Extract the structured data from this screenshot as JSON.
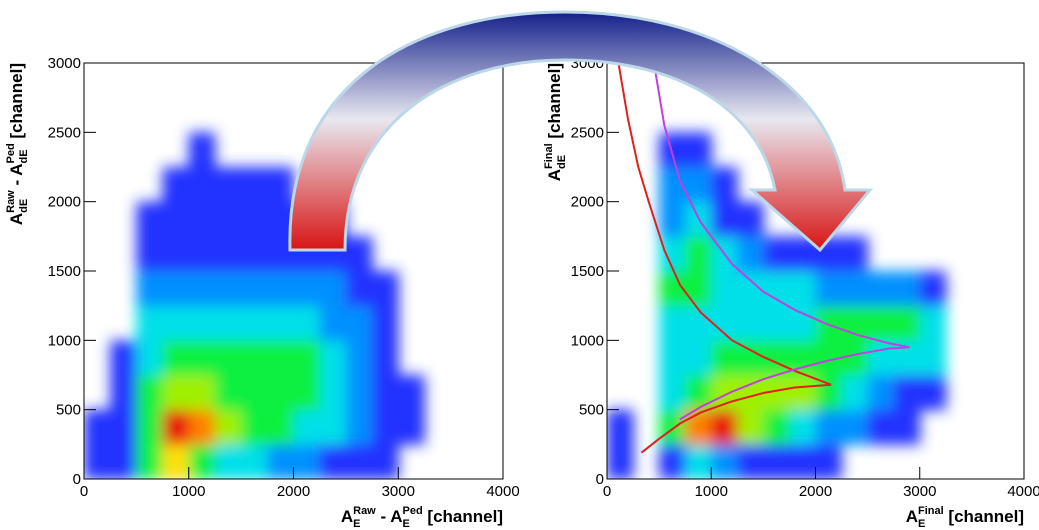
{
  "chart_data": [
    {
      "type": "hist2d",
      "xlabel": [
        {
          "text": "A",
          "pos": "base"
        },
        {
          "text": "E",
          "pos": "sub"
        },
        {
          "text": "Raw",
          "pos": "sup"
        },
        {
          "text": " - A",
          "pos": "base"
        },
        {
          "text": "E",
          "pos": "sub"
        },
        {
          "text": "Ped",
          "pos": "sup"
        },
        {
          "text": " [channel]",
          "pos": "base"
        }
      ],
      "ylabel": [
        {
          "text": "A",
          "pos": "base"
        },
        {
          "text": "dE",
          "pos": "sub"
        },
        {
          "text": "Raw",
          "pos": "sup"
        },
        {
          "text": " - A",
          "pos": "base"
        },
        {
          "text": "dE",
          "pos": "sub"
        },
        {
          "text": "Ped",
          "pos": "sup"
        },
        {
          "text": " [channel]",
          "pos": "base"
        }
      ],
      "xlim": [
        0,
        4000
      ],
      "ylim": [
        0,
        3000
      ],
      "xticks": [
        0,
        1000,
        2000,
        3000,
        4000
      ],
      "yticks": [
        0,
        500,
        1000,
        1500,
        2000,
        2500,
        3000
      ],
      "colormap": [
        "#6a00c8",
        "#2030ff",
        "#0090ff",
        "#00e0e8",
        "#10f040",
        "#a0f000",
        "#ffe000",
        "#ff8000",
        "#e81010"
      ],
      "xbins": [
        0,
        250,
        500,
        750,
        1000,
        1250,
        1500,
        1750,
        2000,
        2250,
        2500,
        2750,
        3000,
        3250,
        3500,
        3750,
        4000
      ],
      "ybins": [
        0,
        250,
        500,
        750,
        1000,
        1250,
        1500,
        1750,
        2000,
        2250,
        2500,
        2750,
        3000
      ],
      "counts": [
        [
          1,
          1,
          5,
          7,
          5,
          3,
          3,
          2,
          2,
          1,
          1,
          1,
          0,
          0,
          0,
          0
        ],
        [
          1,
          1,
          5,
          9,
          8,
          6,
          5,
          4,
          3,
          3,
          2,
          1,
          1,
          0,
          0,
          0
        ],
        [
          0,
          1,
          4,
          6,
          6,
          5,
          5,
          4,
          4,
          3,
          2,
          1,
          1,
          0,
          0,
          0
        ],
        [
          0,
          1,
          3,
          4,
          4,
          4,
          4,
          4,
          4,
          3,
          2,
          1,
          0,
          0,
          0,
          0
        ],
        [
          0,
          0,
          3,
          3,
          3,
          3,
          3,
          3,
          3,
          2,
          2,
          1,
          0,
          0,
          0,
          0
        ],
        [
          0,
          0,
          2,
          2,
          2,
          2,
          2,
          2,
          2,
          2,
          1,
          1,
          0,
          0,
          0,
          0
        ],
        [
          0,
          0,
          1,
          1,
          1,
          1,
          1,
          1,
          1,
          1,
          1,
          0,
          0,
          0,
          0,
          0
        ],
        [
          0,
          0,
          1,
          1,
          1,
          1,
          1,
          1,
          1,
          1,
          0,
          0,
          0,
          0,
          0,
          0
        ],
        [
          0,
          0,
          0,
          1,
          1,
          1,
          1,
          1,
          0,
          0,
          0,
          0,
          0,
          0,
          0,
          0
        ],
        [
          0,
          0,
          0,
          0,
          1,
          0,
          0,
          0,
          0,
          0,
          0,
          0,
          0,
          0,
          0,
          0
        ],
        [
          0,
          0,
          0,
          0,
          0,
          0,
          0,
          0,
          0,
          0,
          0,
          0,
          0,
          0,
          0,
          0
        ],
        [
          0,
          0,
          0,
          0,
          0,
          0,
          0,
          0,
          0,
          0,
          0,
          0,
          0,
          0,
          0,
          0
        ]
      ],
      "lines": []
    },
    {
      "type": "hist2d",
      "xlabel": [
        {
          "text": "A",
          "pos": "base"
        },
        {
          "text": "E",
          "pos": "sub"
        },
        {
          "text": "Final",
          "pos": "sup"
        },
        {
          "text": " [channel]",
          "pos": "base"
        }
      ],
      "ylabel": [
        {
          "text": "A",
          "pos": "base"
        },
        {
          "text": "dE",
          "pos": "sub"
        },
        {
          "text": "Final",
          "pos": "sup"
        },
        {
          "text": " [channel]",
          "pos": "base"
        }
      ],
      "xlim": [
        0,
        4000
      ],
      "ylim": [
        0,
        3000
      ],
      "xticks": [
        0,
        1000,
        2000,
        3000,
        4000
      ],
      "yticks": [
        0,
        500,
        1000,
        1500,
        2000,
        2500,
        3000
      ],
      "colormap": [
        "#6a00c8",
        "#2030ff",
        "#0090ff",
        "#00e0e8",
        "#10f040",
        "#a0f000",
        "#ffe000",
        "#ff8000",
        "#e81010"
      ],
      "xbins": [
        0,
        250,
        500,
        750,
        1000,
        1250,
        1500,
        1750,
        2000,
        2250,
        2500,
        2750,
        3000,
        3250,
        3500,
        3750,
        4000
      ],
      "ybins": [
        0,
        250,
        500,
        750,
        1000,
        1250,
        1500,
        1750,
        2000,
        2250,
        2500,
        2750,
        3000
      ],
      "counts": [
        [
          1,
          0,
          1,
          3,
          2,
          1,
          1,
          1,
          1,
          0,
          0,
          0,
          0,
          0,
          0,
          0
        ],
        [
          1,
          0,
          4,
          8,
          9,
          6,
          4,
          3,
          2,
          2,
          1,
          1,
          0,
          0,
          0,
          0
        ],
        [
          0,
          0,
          3,
          5,
          6,
          6,
          6,
          6,
          5,
          3,
          2,
          1,
          1,
          0,
          0,
          0
        ],
        [
          0,
          0,
          3,
          3,
          4,
          4,
          5,
          5,
          5,
          4,
          3,
          3,
          3,
          0,
          0,
          0
        ],
        [
          0,
          0,
          3,
          3,
          3,
          3,
          3,
          3,
          4,
          4,
          4,
          4,
          3,
          0,
          0,
          0
        ],
        [
          0,
          0,
          4,
          4,
          3,
          3,
          3,
          3,
          2,
          2,
          2,
          2,
          1,
          0,
          0,
          0
        ],
        [
          0,
          0,
          3,
          4,
          3,
          2,
          1,
          1,
          1,
          1,
          0,
          0,
          0,
          0,
          0,
          0
        ],
        [
          0,
          0,
          2,
          3,
          1,
          1,
          0,
          0,
          0,
          0,
          0,
          0,
          0,
          0,
          0,
          0
        ],
        [
          0,
          0,
          2,
          2,
          1,
          0,
          0,
          0,
          0,
          0,
          0,
          0,
          0,
          0,
          0,
          0
        ],
        [
          0,
          0,
          1,
          1,
          0,
          0,
          0,
          0,
          0,
          0,
          0,
          0,
          0,
          0,
          0,
          0
        ],
        [
          0,
          0,
          0,
          0,
          0,
          0,
          0,
          0,
          0,
          0,
          0,
          0,
          0,
          0,
          0,
          0
        ],
        [
          0,
          0,
          0,
          0,
          0,
          0,
          0,
          0,
          0,
          0,
          0,
          0,
          0,
          0,
          0,
          0
        ]
      ],
      "lines": [
        {
          "color": "#e0201a",
          "x": [
            110,
            200,
            300,
            400,
            550,
            700,
            900,
            1200,
            1500,
            1800,
            2150
          ],
          "y": [
            3000,
            2600,
            2250,
            2000,
            1650,
            1400,
            1200,
            1000,
            880,
            780,
            680
          ]
        },
        {
          "color": "#e0201a",
          "x": [
            330,
            500,
            700,
            900,
            1200,
            1500,
            1800,
            2150
          ],
          "y": [
            190,
            290,
            400,
            480,
            560,
            620,
            660,
            680
          ]
        },
        {
          "color": "#c040e0",
          "x": [
            450,
            550,
            700,
            900,
            1200,
            1500,
            1800,
            2100,
            2400,
            2700,
            2900
          ],
          "y": [
            3000,
            2550,
            2150,
            1850,
            1550,
            1350,
            1220,
            1120,
            1040,
            980,
            950
          ]
        },
        {
          "color": "#c040e0",
          "x": [
            700,
            900,
            1200,
            1500,
            1800,
            2100,
            2400,
            2700,
            2900
          ],
          "y": [
            430,
            520,
            630,
            720,
            790,
            850,
            900,
            940,
            950
          ]
        }
      ]
    }
  ]
}
